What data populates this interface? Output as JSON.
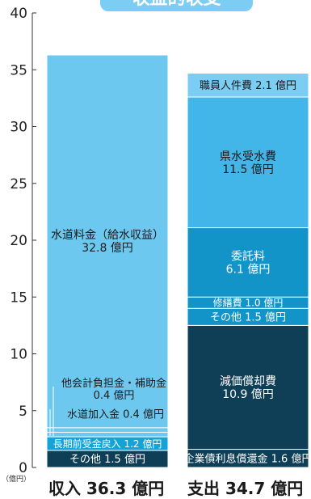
{
  "chart_data": {
    "type": "stacked-bar",
    "title": "収益的収支",
    "unit": "（億円）",
    "ylim": [
      0,
      40
    ],
    "yticks": [
      0,
      5,
      10,
      15,
      20,
      25,
      30,
      35,
      40
    ],
    "bars": [
      {
        "id": "income",
        "label": "収入 36.3 億円",
        "total": 36.3,
        "segments": [
          {
            "name": "その他",
            "value": 1.5,
            "text": "その他 1.5 億円",
            "color": "#0e3f57",
            "text_color": "#ffffff"
          },
          {
            "name": "長期前受金戻入",
            "value": 1.2,
            "text": "長期前受金戻入 1.2 億円",
            "color": "#14a3d8",
            "text_color": "#ffffff"
          },
          {
            "name": "水道加入金",
            "value": 0.4,
            "text": "水道加入金 0.4 億円",
            "color": "#6dc8f0",
            "text_color": "#1a1a1a"
          },
          {
            "name": "他会計負担金・補助金",
            "value": 0.4,
            "text": "他会計負担金・補助金 0.4 億円",
            "color": "#6dc8f0",
            "text_color": "#1a1a1a"
          },
          {
            "name": "水道料金（給水収益）",
            "value": 32.8,
            "text": "水道料金（給水収益） 32.8 億円",
            "color": "#6dc8f0",
            "text_color": "#1a1a1a"
          }
        ]
      },
      {
        "id": "expense",
        "label": "支出 34.7 億円",
        "total": 34.7,
        "segments": [
          {
            "name": "企業債利息償還金",
            "value": 1.6,
            "text": "企業債利息償還金 1.6 億円",
            "color": "#0e3f57",
            "text_color": "#ffffff"
          },
          {
            "name": "減価償却費",
            "value": 10.9,
            "text": "減価償却費 10.9 億円",
            "color": "#0e3f57",
            "text_color": "#ffffff"
          },
          {
            "name": "その他",
            "value": 1.5,
            "text": "その他 1.5 億円",
            "color": "#1394c9",
            "text_color": "#ffffff"
          },
          {
            "name": "修繕費",
            "value": 1.0,
            "text": "修繕費 1.0 億円",
            "color": "#1394c9",
            "text_color": "#ffffff"
          },
          {
            "name": "委託料",
            "value": 6.1,
            "text": "委託料 6.1 億円",
            "color": "#1394c9",
            "text_color": "#ffffff"
          },
          {
            "name": "県水受水費",
            "value": 11.5,
            "text": "県水受水費 11.5 億円",
            "color": "#43b6e9",
            "text_color": "#1a1a1a"
          },
          {
            "name": "職員人件費",
            "value": 2.1,
            "text": "職員人件費 2.1 億円",
            "color": "#7ccdf4",
            "text_color": "#1a1a1a"
          }
        ]
      }
    ]
  }
}
